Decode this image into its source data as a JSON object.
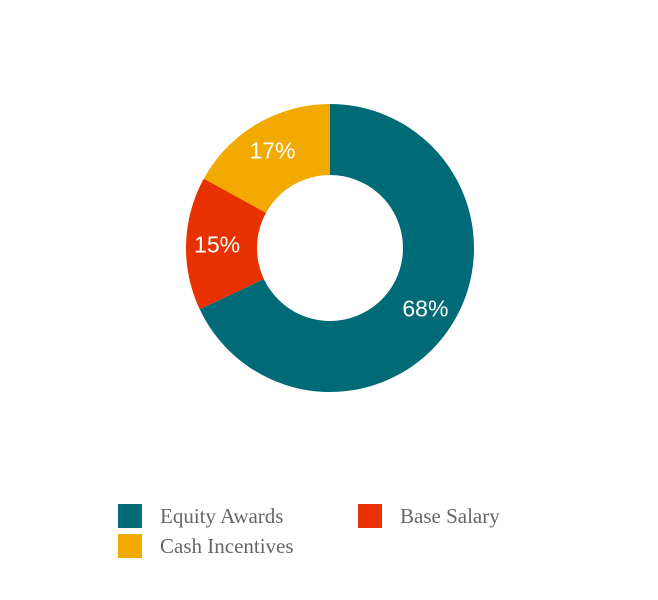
{
  "chart_data": {
    "type": "pie",
    "subtype": "donut",
    "categories": [
      "Equity Awards",
      "Base Salary",
      "Cash Incentives"
    ],
    "values": [
      68,
      15,
      17
    ],
    "value_labels": [
      "68%",
      "15%",
      "17%"
    ],
    "colors": [
      "#006A77",
      "#E83100",
      "#F2A900"
    ],
    "legend_position": "bottom",
    "start_angle": "12 o'clock, clockwise"
  }
}
